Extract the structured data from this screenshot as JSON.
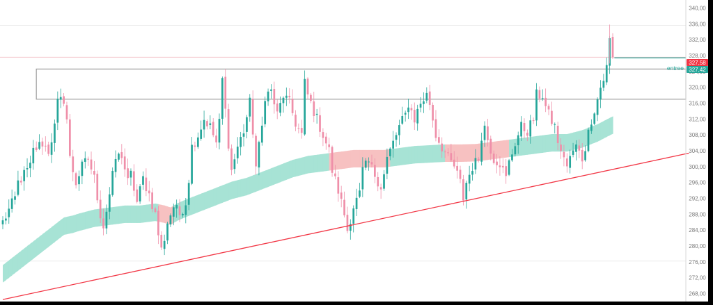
{
  "chart_data": {
    "type": "candlestick",
    "title": "",
    "xlabel": "",
    "ylabel": "",
    "ylim": [
      266.0,
      342.0
    ],
    "y_ticks": [
      "268,00",
      "272,00",
      "276,00",
      "280,00",
      "284,00",
      "288,00",
      "292,00",
      "296,00",
      "300,00",
      "304,00",
      "308,00",
      "312,00",
      "316,00",
      "320,00",
      "324,00",
      "328,00",
      "332,00",
      "336,00",
      "340,00"
    ],
    "y_tick_values": [
      268,
      272,
      276,
      280,
      284,
      288,
      292,
      296,
      300,
      304,
      308,
      312,
      316,
      320,
      324,
      328,
      332,
      336,
      340
    ],
    "grid": false,
    "colors": {
      "background": "#ffffff",
      "up": "#26a69a",
      "down": "#ef8fa9",
      "ma_bull": "#a7e3d5",
      "ma_bear": "#f7c1c1",
      "trendline": "#f23645",
      "zone_border": "#9e9e9e",
      "last_price_bg": "#f23645",
      "entry_bg": "#26a69a",
      "axis_text": "#7a7a7a",
      "outer_frame": "#000000"
    },
    "trendline": {
      "start": [
        0,
        266.5
      ],
      "end": [
        225,
        303.4
      ]
    },
    "zone": {
      "x_start": 11,
      "top": 324.6,
      "bottom": 317.0
    },
    "hlines": [
      {
        "value": 335.6,
        "color": "#ececec"
      },
      {
        "value": 276.2,
        "color": "#ececec"
      },
      {
        "value": 327.58,
        "color": "#f5c6cc"
      }
    ],
    "last_price": {
      "value": 327.58,
      "label": "327,58"
    },
    "entry": {
      "value": 327.42,
      "label": "327,42",
      "name": "entree",
      "x_start": 201
    },
    "ma_band_width": 2.2,
    "anchors_close": [
      [
        0,
        286
      ],
      [
        2,
        289
      ],
      [
        4,
        292
      ],
      [
        5,
        296
      ],
      [
        7,
        298
      ],
      [
        9,
        300
      ],
      [
        10,
        304
      ],
      [
        13,
        306
      ],
      [
        15,
        304
      ],
      [
        17,
        310
      ],
      [
        18,
        316
      ],
      [
        20,
        317
      ],
      [
        21,
        312
      ],
      [
        22,
        302
      ],
      [
        24,
        296
      ],
      [
        26,
        300
      ],
      [
        28,
        302
      ],
      [
        30,
        297
      ],
      [
        32,
        288
      ],
      [
        33,
        285
      ],
      [
        35,
        293
      ],
      [
        37,
        302
      ],
      [
        39,
        303
      ],
      [
        41,
        296
      ],
      [
        42,
        298
      ],
      [
        44,
        291
      ],
      [
        46,
        297
      ],
      [
        48,
        293
      ],
      [
        50,
        288
      ],
      [
        51,
        283
      ],
      [
        52,
        279
      ],
      [
        53,
        282
      ],
      [
        54,
        286
      ],
      [
        56,
        290
      ],
      [
        58,
        288
      ],
      [
        60,
        291
      ],
      [
        61,
        297
      ],
      [
        62,
        305
      ],
      [
        64,
        308
      ],
      [
        66,
        312
      ],
      [
        68,
        310
      ],
      [
        70,
        306
      ],
      [
        71,
        311
      ],
      [
        72,
        322
      ],
      [
        73,
        314
      ],
      [
        74,
        306
      ],
      [
        75,
        299
      ],
      [
        77,
        305
      ],
      [
        79,
        309
      ],
      [
        81,
        316
      ],
      [
        82,
        309
      ],
      [
        83,
        300
      ],
      [
        85,
        310
      ],
      [
        86,
        318
      ],
      [
        88,
        319
      ],
      [
        90,
        313
      ],
      [
        92,
        318
      ],
      [
        94,
        316
      ],
      [
        96,
        311
      ],
      [
        98,
        308
      ],
      [
        99,
        321
      ],
      [
        100,
        318
      ],
      [
        102,
        314
      ],
      [
        104,
        310
      ],
      [
        105,
        308
      ],
      [
        107,
        304
      ],
      [
        108,
        299
      ],
      [
        110,
        294
      ],
      [
        112,
        288
      ],
      [
        113,
        284
      ],
      [
        115,
        290
      ],
      [
        117,
        293
      ],
      [
        118,
        299
      ],
      [
        120,
        301
      ],
      [
        122,
        298
      ],
      [
        124,
        295
      ],
      [
        125,
        298
      ],
      [
        126,
        302
      ],
      [
        128,
        306
      ],
      [
        130,
        310
      ],
      [
        132,
        313
      ],
      [
        133,
        316
      ],
      [
        135,
        312
      ],
      [
        137,
        316
      ],
      [
        139,
        318
      ],
      [
        140,
        316
      ],
      [
        142,
        308
      ],
      [
        144,
        305
      ],
      [
        146,
        302
      ],
      [
        148,
        300
      ],
      [
        150,
        296
      ],
      [
        151,
        292
      ],
      [
        152,
        296
      ],
      [
        154,
        300
      ],
      [
        156,
        302
      ],
      [
        157,
        308
      ],
      [
        158,
        310
      ],
      [
        159,
        307
      ],
      [
        161,
        302
      ],
      [
        163,
        301
      ],
      [
        165,
        297
      ],
      [
        166,
        301
      ],
      [
        168,
        306
      ],
      [
        170,
        310
      ],
      [
        172,
        309
      ],
      [
        174,
        312
      ],
      [
        175,
        318
      ],
      [
        177,
        318
      ],
      [
        178,
        315
      ],
      [
        179,
        313
      ],
      [
        181,
        310
      ],
      [
        183,
        303
      ],
      [
        184,
        303
      ],
      [
        185,
        300
      ],
      [
        187,
        304
      ],
      [
        188,
        305
      ],
      [
        190,
        302
      ],
      [
        191,
        305
      ],
      [
        193,
        312
      ],
      [
        195,
        317
      ],
      [
        196,
        320
      ],
      [
        197,
        322
      ],
      [
        198,
        325
      ],
      [
        199,
        332
      ],
      [
        200,
        327.5
      ]
    ],
    "anchors_ma": [
      [
        0,
        273
      ],
      [
        5,
        276
      ],
      [
        10,
        279
      ],
      [
        15,
        282
      ],
      [
        20,
        285
      ],
      [
        23,
        285.5
      ],
      [
        25,
        286
      ],
      [
        30,
        287
      ],
      [
        35,
        287.5
      ],
      [
        40,
        288
      ],
      [
        45,
        288
      ],
      [
        50,
        288.5
      ],
      [
        53,
        288
      ],
      [
        55,
        287.5
      ],
      [
        57,
        288.5
      ],
      [
        60,
        289.5
      ],
      [
        65,
        291
      ],
      [
        70,
        292.5
      ],
      [
        75,
        294
      ],
      [
        80,
        295
      ],
      [
        85,
        296.5
      ],
      [
        90,
        298
      ],
      [
        95,
        299.5
      ],
      [
        100,
        300.5
      ],
      [
        105,
        301
      ],
      [
        110,
        301.5
      ],
      [
        115,
        302
      ],
      [
        120,
        302
      ],
      [
        125,
        302
      ],
      [
        130,
        302.5
      ],
      [
        135,
        303
      ],
      [
        140,
        303.2
      ],
      [
        145,
        303.4
      ],
      [
        150,
        303.4
      ],
      [
        155,
        303.5
      ],
      [
        160,
        304
      ],
      [
        165,
        304.5
      ],
      [
        170,
        305
      ],
      [
        175,
        305.5
      ],
      [
        180,
        306
      ],
      [
        185,
        306
      ],
      [
        190,
        307
      ],
      [
        195,
        308.5
      ],
      [
        200,
        310.5
      ]
    ],
    "ma_bear_ranges": [
      [
        51,
        56
      ],
      [
        107,
        127
      ],
      [
        145,
        166
      ]
    ],
    "n_candles": 201
  }
}
